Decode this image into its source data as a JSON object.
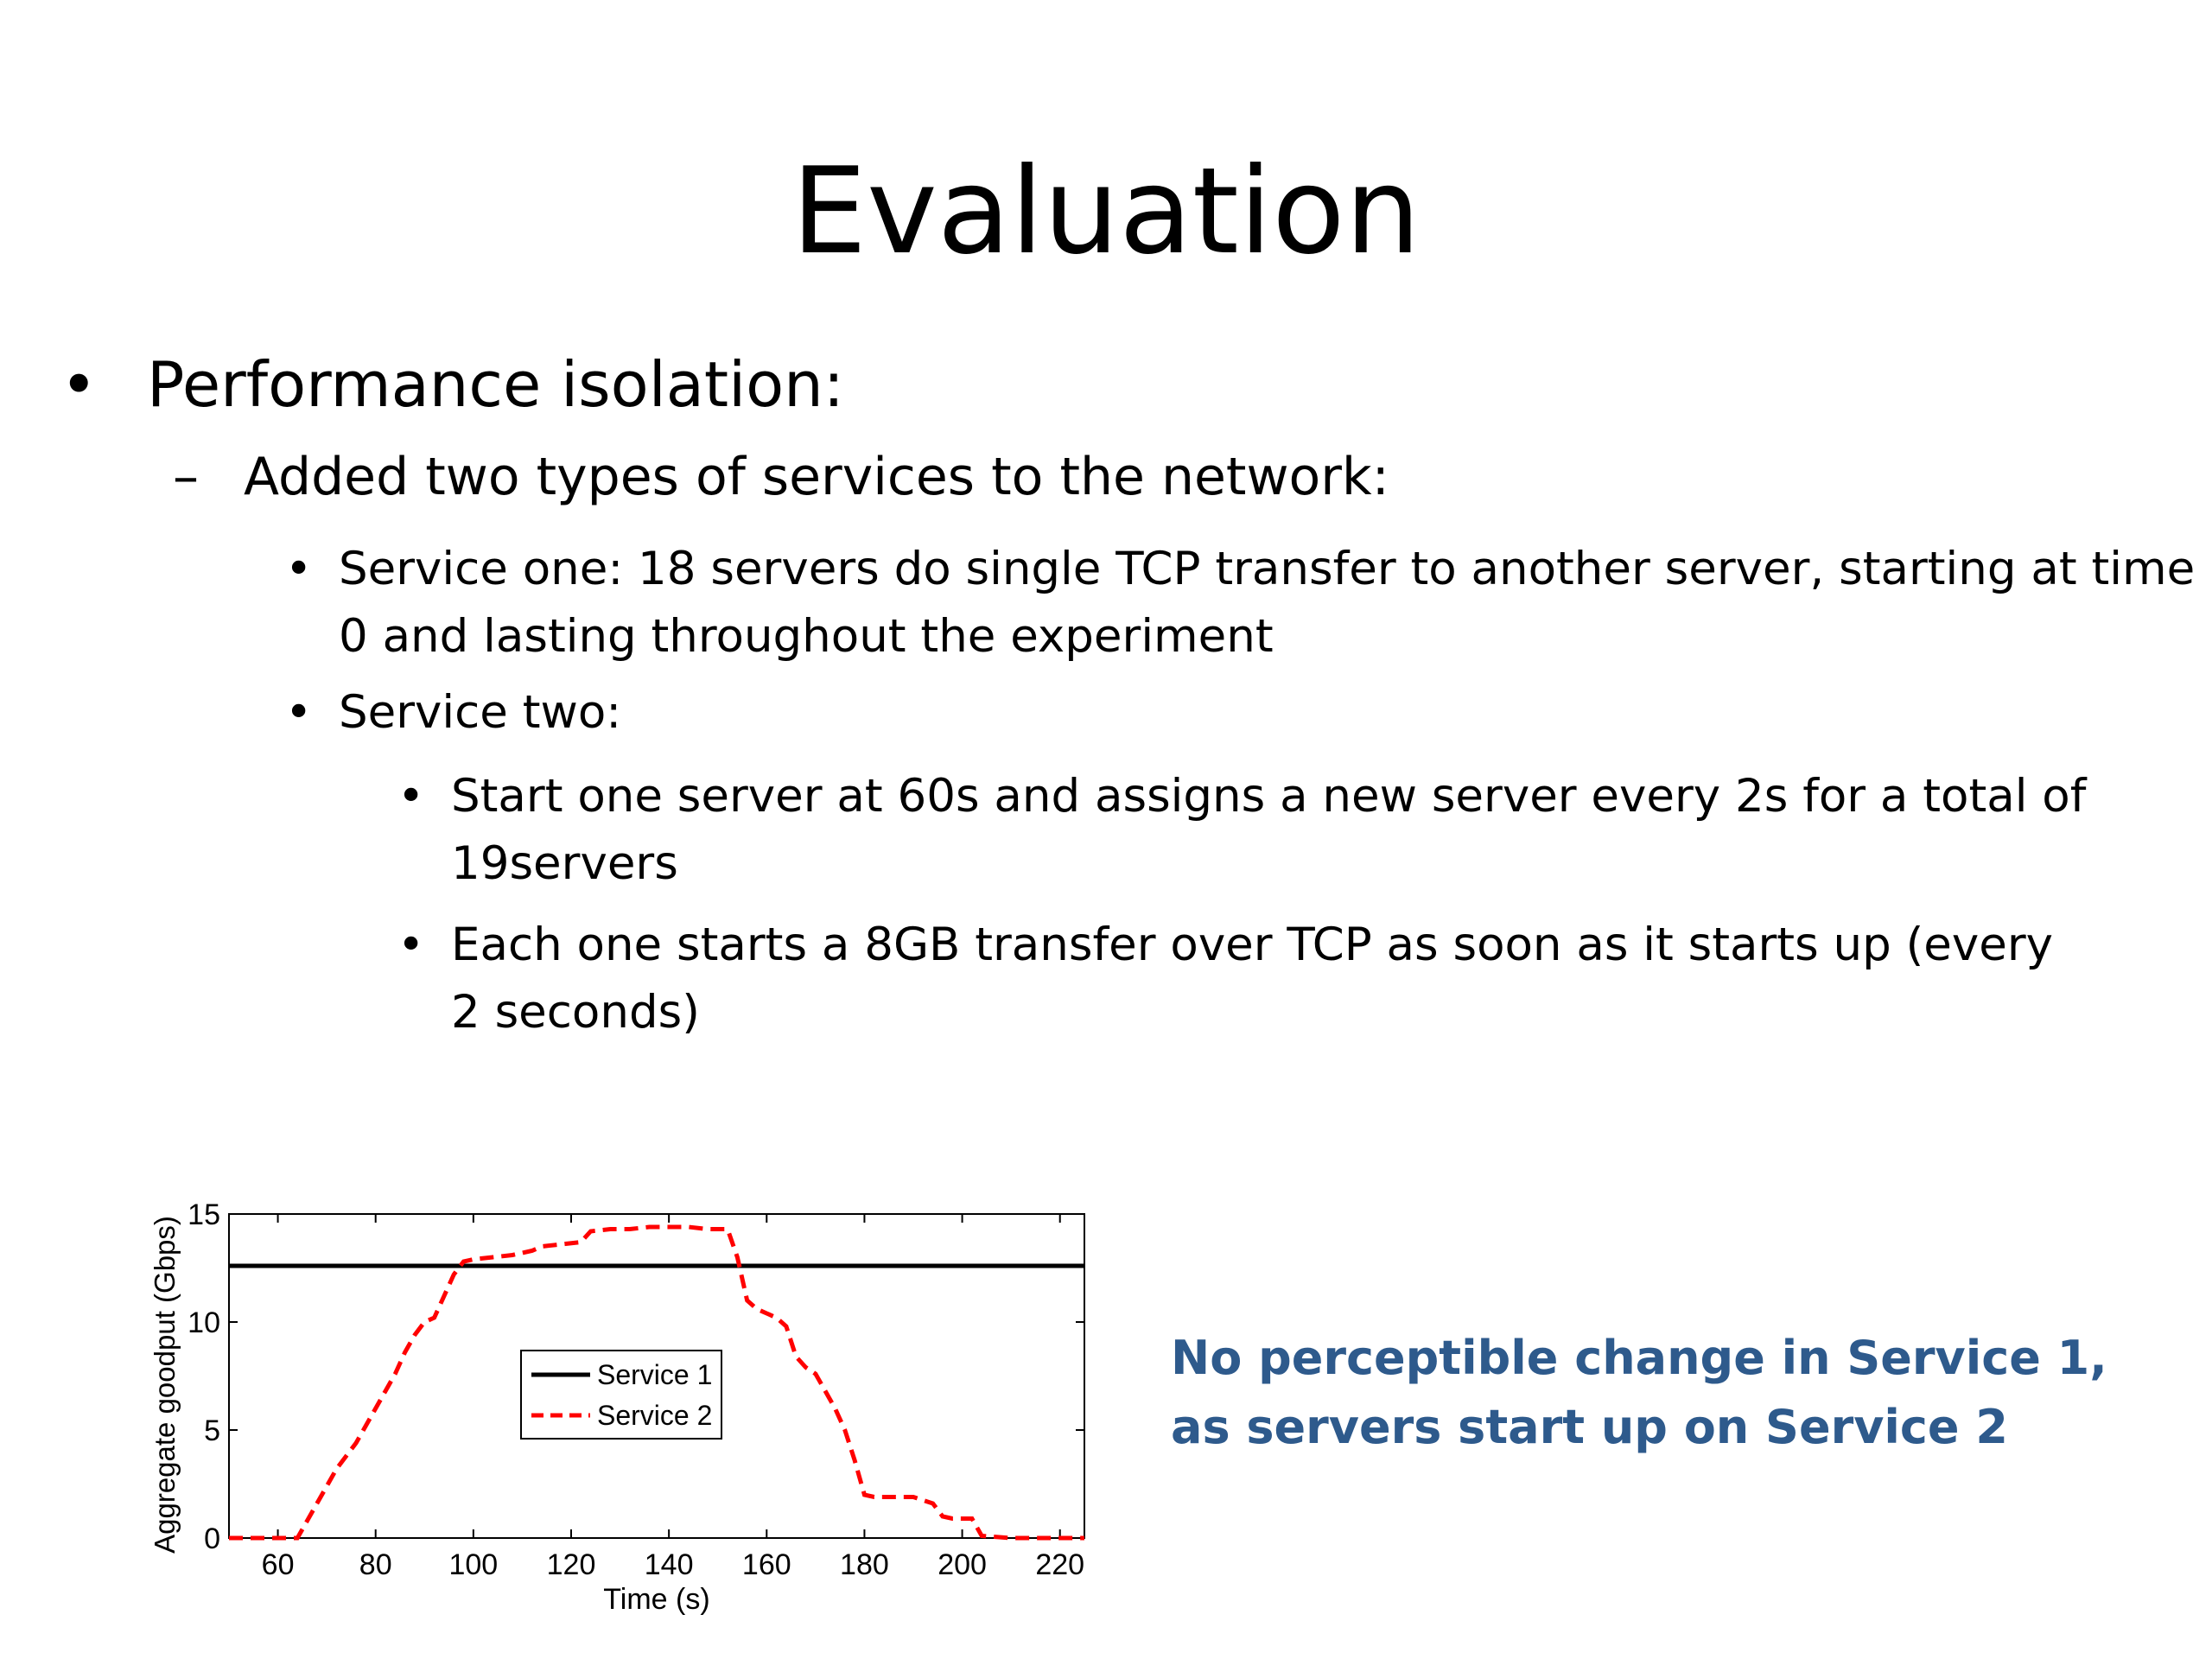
{
  "slide": {
    "title": "Evaluation",
    "bullet_1": "Performance isolation:",
    "bullet_1_mark": "•",
    "sub_1": "Added two types of services to the network:",
    "sub_1_mark": "–",
    "service_one": "Service one: 18 servers do single TCP transfer to another server, starting at time 0 and lasting throughout the experiment",
    "service_two": "Service two:",
    "service_two_a": "Start one server at 60s and assigns a new server every 2s for a total of 19servers",
    "service_two_b": "Each one starts a 8GB transfer over TCP as soon as it starts up (every 2 seconds)",
    "item_mark": "•",
    "note": "No perceptible change in Service 1, as servers start up on Service 2",
    "note_color": "#2e5a8c"
  },
  "chart_data": {
    "type": "line",
    "title": "",
    "xlabel": "Time (s)",
    "ylabel": "Aggregate goodput (Gbps)",
    "xlim": [
      50,
      225
    ],
    "ylim": [
      0,
      15
    ],
    "xticks": [
      60,
      80,
      100,
      120,
      140,
      160,
      180,
      200,
      220
    ],
    "yticks": [
      0,
      5,
      10,
      15
    ],
    "grid": false,
    "legend_position": "center-left",
    "series": [
      {
        "name": "Service 1",
        "color": "#000000",
        "style": "solid",
        "x": [
          50,
          225
        ],
        "y": [
          12.6,
          12.6
        ]
      },
      {
        "name": "Service 2",
        "color": "#ff0000",
        "style": "dashed",
        "x": [
          50,
          62,
          64,
          66,
          68,
          70,
          72,
          74,
          76,
          78,
          80,
          82,
          84,
          86,
          88,
          90,
          92,
          94,
          96,
          98,
          100,
          104,
          108,
          112,
          114,
          118,
          122,
          124,
          128,
          132,
          136,
          140,
          144,
          148,
          152,
          154,
          156,
          158,
          162,
          164,
          166,
          168,
          170,
          172,
          174,
          176,
          178,
          180,
          182,
          186,
          190,
          194,
          196,
          198,
          202,
          204,
          210,
          225
        ],
        "y": [
          0,
          0,
          0,
          0.8,
          1.6,
          2.4,
          3.2,
          3.8,
          4.4,
          5.2,
          6.0,
          6.8,
          7.6,
          8.6,
          9.4,
          10.0,
          10.2,
          11.2,
          12.2,
          12.8,
          12.9,
          13.0,
          13.1,
          13.3,
          13.5,
          13.6,
          13.7,
          14.2,
          14.3,
          14.3,
          14.4,
          14.4,
          14.4,
          14.3,
          14.3,
          13.0,
          11.0,
          10.6,
          10.2,
          9.8,
          8.4,
          7.9,
          7.6,
          6.8,
          6.0,
          5.0,
          3.6,
          2.0,
          1.9,
          1.9,
          1.9,
          1.6,
          1.0,
          0.9,
          0.9,
          0.1,
          0,
          0
        ]
      }
    ]
  }
}
